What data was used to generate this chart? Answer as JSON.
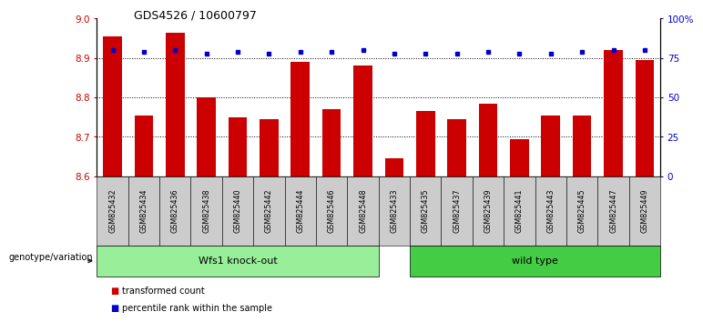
{
  "title": "GDS4526 / 10600797",
  "categories": [
    "GSM825432",
    "GSM825434",
    "GSM825436",
    "GSM825438",
    "GSM825440",
    "GSM825442",
    "GSM825444",
    "GSM825446",
    "GSM825448",
    "GSM825433",
    "GSM825435",
    "GSM825437",
    "GSM825439",
    "GSM825441",
    "GSM825443",
    "GSM825445",
    "GSM825447",
    "GSM825449"
  ],
  "bar_values": [
    8.955,
    8.755,
    8.965,
    8.8,
    8.75,
    8.745,
    8.89,
    8.77,
    8.88,
    8.645,
    8.765,
    8.745,
    8.785,
    8.695,
    8.755,
    8.755,
    8.92,
    8.895
  ],
  "percentile_values": [
    80,
    79,
    80,
    78,
    79,
    78,
    79,
    79,
    80,
    78,
    78,
    78,
    79,
    78,
    78,
    79,
    80,
    80
  ],
  "bar_color": "#CC0000",
  "percentile_color": "#0000CC",
  "ylim_left": [
    8.6,
    9.0
  ],
  "ylim_right": [
    0,
    100
  ],
  "yticks_left": [
    8.6,
    8.7,
    8.8,
    8.9,
    9.0
  ],
  "yticks_right": [
    0,
    25,
    50,
    75,
    100
  ],
  "ytick_labels_right": [
    "0",
    "25",
    "50",
    "75",
    "100%"
  ],
  "hlines": [
    8.7,
    8.8,
    8.9
  ],
  "group1_label": "Wfs1 knock-out",
  "group2_label": "wild type",
  "group1_count": 9,
  "group2_count": 9,
  "group1_color": "#99EE99",
  "group2_color": "#44CC44",
  "genotype_label": "genotype/variation",
  "legend_red_label": "transformed count",
  "legend_blue_label": "percentile rank within the sample",
  "plot_bg": "#FFFFFF",
  "left_tick_color": "#CC0000",
  "right_tick_color": "#0000CC",
  "xtick_bg": "#CCCCCC"
}
